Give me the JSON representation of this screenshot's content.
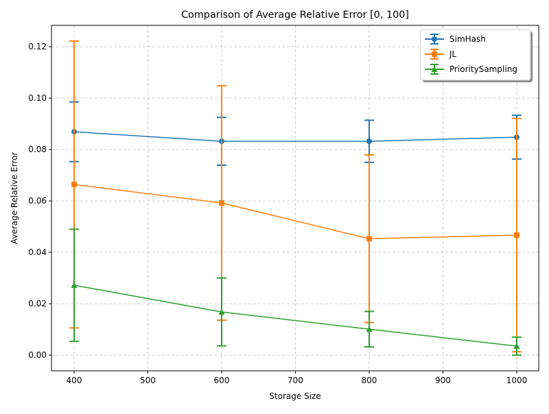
{
  "chart_data": {
    "type": "errorbar",
    "title": "Comparison of Average Relative Error [0, 100]",
    "xlabel": "Storage Size",
    "ylabel": "Average Relative Error",
    "x": [
      400,
      600,
      800,
      1000
    ],
    "series": [
      {
        "name": "SimHash",
        "color": "#1f77b4",
        "marker": "circle",
        "values": [
          0.0869,
          0.0832,
          0.0832,
          0.0848
        ],
        "errors": [
          0.0116,
          0.0093,
          0.0082,
          0.0085
        ]
      },
      {
        "name": "JL",
        "color": "#ff7f0e",
        "marker": "square",
        "values": [
          0.0664,
          0.0592,
          0.0453,
          0.0467
        ],
        "errors": [
          0.0558,
          0.0456,
          0.0326,
          0.0454
        ]
      },
      {
        "name": "PrioritySampling",
        "color": "#2ca02c",
        "marker": "triangle",
        "values": [
          0.0272,
          0.0168,
          0.0101,
          0.0035
        ],
        "errors": [
          0.0218,
          0.0132,
          0.0069,
          0.0035
        ]
      }
    ],
    "xlim": [
      369.3,
      1029.8
    ],
    "ylim": [
      -0.0061,
      0.1283
    ],
    "xticks": [
      400,
      500,
      600,
      700,
      800,
      900,
      1000
    ],
    "yticks": [
      {
        "value": 0,
        "label": "0.00"
      },
      {
        "value": 0.02,
        "label": "0.02"
      },
      {
        "value": 0.04,
        "label": "0.04"
      },
      {
        "value": 0.06,
        "label": "0.06"
      },
      {
        "value": 0.08,
        "label": "0.08"
      },
      {
        "value": 0.1,
        "label": "0.10"
      },
      {
        "value": 0.12,
        "label": "0.12"
      }
    ],
    "grid": true,
    "legend": "upper right"
  }
}
